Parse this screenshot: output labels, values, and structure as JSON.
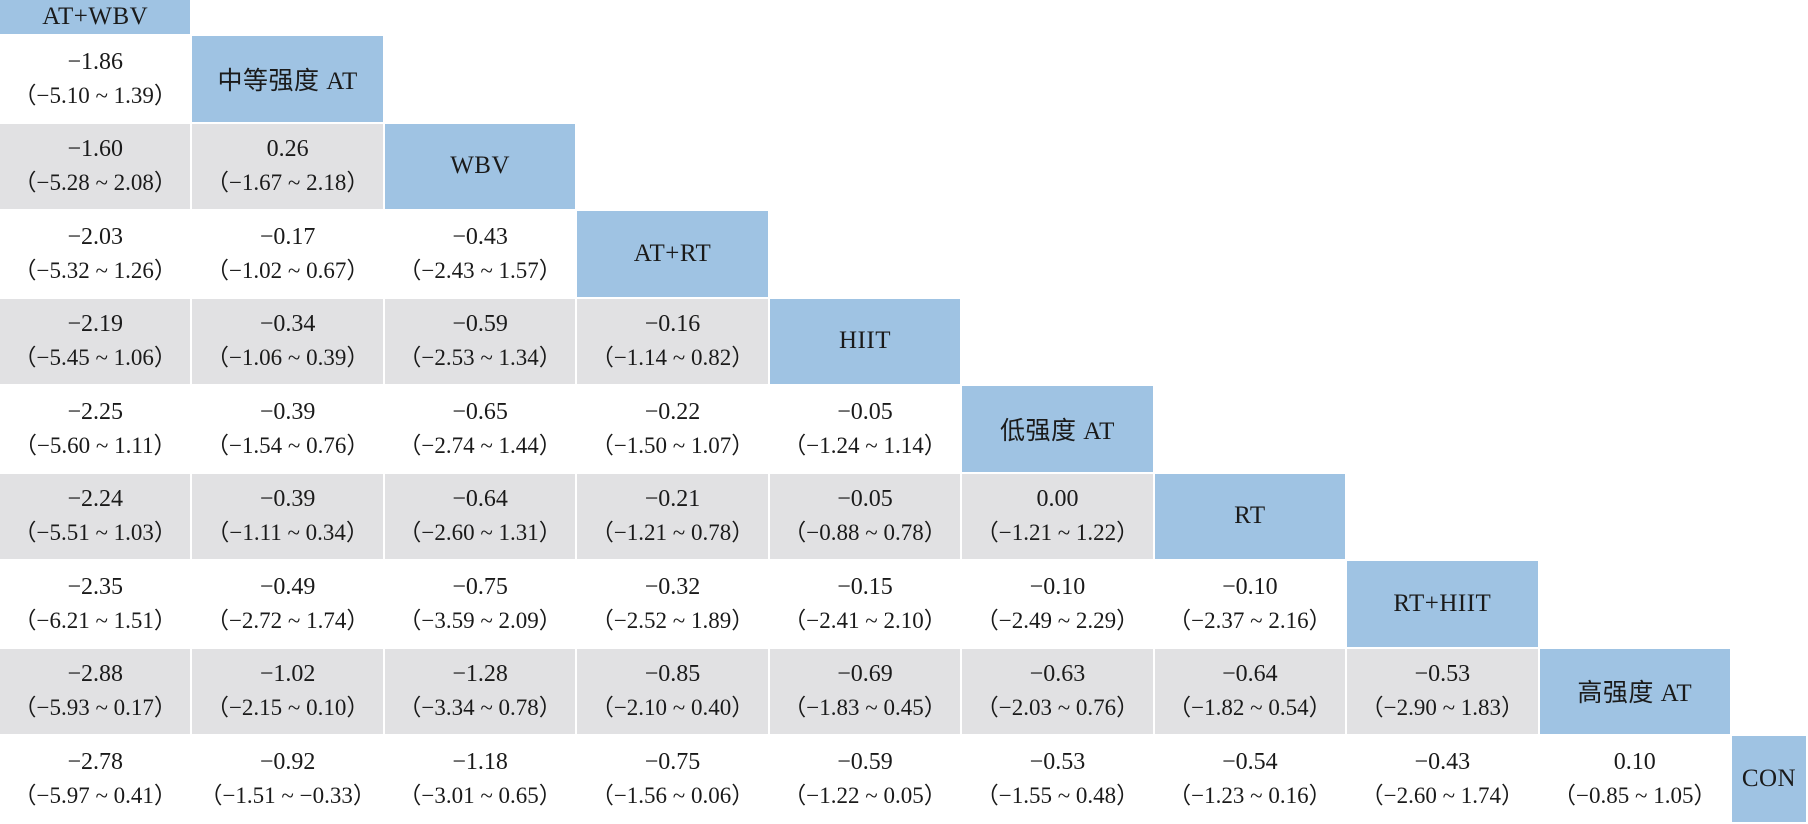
{
  "colors": {
    "diagonal_blue": "#9fc3e3",
    "stripe_gray": "#e1e1e3",
    "background": "#ffffff",
    "text": "#1a1a1a"
  },
  "table": {
    "treatments": [
      "AT+WBV",
      "中等强度 AT",
      "WBV",
      "AT+RT",
      "HIIT",
      "低强度 AT",
      "RT",
      "RT+HIIT",
      "高强度 AT",
      "CON"
    ],
    "rows": [
      {
        "cells": []
      },
      {
        "cells": [
          {
            "value": "−1.86",
            "ci": "（−5.10 ~ 1.39）"
          }
        ]
      },
      {
        "cells": [
          {
            "value": "−1.60",
            "ci": "（−5.28 ~ 2.08）"
          },
          {
            "value": "0.26",
            "ci": "（−1.67 ~ 2.18）"
          }
        ]
      },
      {
        "cells": [
          {
            "value": "−2.03",
            "ci": "（−5.32 ~ 1.26）"
          },
          {
            "value": "−0.17",
            "ci": "（−1.02 ~ 0.67）"
          },
          {
            "value": "−0.43",
            "ci": "（−2.43 ~ 1.57）"
          }
        ]
      },
      {
        "cells": [
          {
            "value": "−2.19",
            "ci": "（−5.45 ~ 1.06）"
          },
          {
            "value": "−0.34",
            "ci": "（−1.06 ~ 0.39）"
          },
          {
            "value": "−0.59",
            "ci": "（−2.53 ~ 1.34）"
          },
          {
            "value": "−0.16",
            "ci": "（−1.14 ~ 0.82）"
          }
        ]
      },
      {
        "cells": [
          {
            "value": "−2.25",
            "ci": "（−5.60 ~ 1.11）"
          },
          {
            "value": "−0.39",
            "ci": "（−1.54 ~ 0.76）"
          },
          {
            "value": "−0.65",
            "ci": "（−2.74 ~ 1.44）"
          },
          {
            "value": "−0.22",
            "ci": "（−1.50 ~ 1.07）"
          },
          {
            "value": "−0.05",
            "ci": "（−1.24 ~ 1.14）"
          }
        ]
      },
      {
        "cells": [
          {
            "value": "−2.24",
            "ci": "（−5.51 ~ 1.03）"
          },
          {
            "value": "−0.39",
            "ci": "（−1.11 ~ 0.34）"
          },
          {
            "value": "−0.64",
            "ci": "（−2.60 ~ 1.31）"
          },
          {
            "value": "−0.21",
            "ci": "（−1.21 ~ 0.78）"
          },
          {
            "value": "−0.05",
            "ci": "（−0.88 ~ 0.78）"
          },
          {
            "value": "0.00",
            "ci": "（−1.21 ~ 1.22）"
          }
        ]
      },
      {
        "cells": [
          {
            "value": "−2.35",
            "ci": "（−6.21 ~ 1.51）"
          },
          {
            "value": "−0.49",
            "ci": "（−2.72 ~ 1.74）"
          },
          {
            "value": "−0.75",
            "ci": "（−3.59 ~ 2.09）"
          },
          {
            "value": "−0.32",
            "ci": "（−2.52 ~ 1.89）"
          },
          {
            "value": "−0.15",
            "ci": "（−2.41 ~ 2.10）"
          },
          {
            "value": "−0.10",
            "ci": "（−2.49 ~ 2.29）"
          },
          {
            "value": "−0.10",
            "ci": "（−2.37 ~ 2.16）"
          }
        ]
      },
      {
        "cells": [
          {
            "value": "−2.88",
            "ci": "（−5.93 ~ 0.17）"
          },
          {
            "value": "−1.02",
            "ci": "（−2.15 ~ 0.10）"
          },
          {
            "value": "−1.28",
            "ci": "（−3.34 ~ 0.78）"
          },
          {
            "value": "−0.85",
            "ci": "（−2.10 ~ 0.40）"
          },
          {
            "value": "−0.69",
            "ci": "（−1.83 ~ 0.45）"
          },
          {
            "value": "−0.63",
            "ci": "（−2.03 ~ 0.76）"
          },
          {
            "value": "−0.64",
            "ci": "（−1.82 ~ 0.54）"
          },
          {
            "value": "−0.53",
            "ci": "（−2.90 ~ 1.83）"
          }
        ]
      },
      {
        "cells": [
          {
            "value": "−2.78",
            "ci": "（−5.97 ~ 0.41）"
          },
          {
            "value": "−0.92",
            "ci": "（−1.51 ~ −0.33）"
          },
          {
            "value": "−1.18",
            "ci": "（−3.01 ~ 0.65）"
          },
          {
            "value": "−0.75",
            "ci": "（−1.56 ~ 0.06）"
          },
          {
            "value": "−0.59",
            "ci": "（−1.22 ~ 0.05）"
          },
          {
            "value": "−0.53",
            "ci": "（−1.55 ~ 0.48）"
          },
          {
            "value": "−0.54",
            "ci": "（−1.23 ~ 0.16）"
          },
          {
            "value": "−0.43",
            "ci": "（−2.60 ~ 1.74）"
          },
          {
            "value": "0.10",
            "ci": "（−0.85 ~ 1.05）"
          }
        ]
      }
    ]
  },
  "chart_data": {
    "type": "table",
    "layout_hint": "lower-triangular league table; diagonal = treatment names (blue), row-vs-column cells = effect estimate with 95% CI; alternating white/gray row stripes",
    "treatments": [
      "AT+WBV",
      "中等强度 AT",
      "WBV",
      "AT+RT",
      "HIIT",
      "低强度 AT",
      "RT",
      "RT+HIIT",
      "高强度 AT",
      "CON"
    ],
    "rows": [
      {
        "treatment": "中等强度 AT",
        "comparisons": [
          {
            "vs": "AT+WBV",
            "est": -1.86,
            "ci": [
              -5.1,
              1.39
            ]
          }
        ]
      },
      {
        "treatment": "WBV",
        "comparisons": [
          {
            "vs": "AT+WBV",
            "est": -1.6,
            "ci": [
              -5.28,
              2.08
            ]
          },
          {
            "vs": "中等强度 AT",
            "est": 0.26,
            "ci": [
              -1.67,
              2.18
            ]
          }
        ]
      },
      {
        "treatment": "AT+RT",
        "comparisons": [
          {
            "vs": "AT+WBV",
            "est": -2.03,
            "ci": [
              -5.32,
              1.26
            ]
          },
          {
            "vs": "中等强度 AT",
            "est": -0.17,
            "ci": [
              -1.02,
              0.67
            ]
          },
          {
            "vs": "WBV",
            "est": -0.43,
            "ci": [
              -2.43,
              1.57
            ]
          }
        ]
      },
      {
        "treatment": "HIIT",
        "comparisons": [
          {
            "vs": "AT+WBV",
            "est": -2.19,
            "ci": [
              -5.45,
              1.06
            ]
          },
          {
            "vs": "中等强度 AT",
            "est": -0.34,
            "ci": [
              -1.06,
              0.39
            ]
          },
          {
            "vs": "WBV",
            "est": -0.59,
            "ci": [
              -2.53,
              1.34
            ]
          },
          {
            "vs": "AT+RT",
            "est": -0.16,
            "ci": [
              -1.14,
              0.82
            ]
          }
        ]
      },
      {
        "treatment": "低强度 AT",
        "comparisons": [
          {
            "vs": "AT+WBV",
            "est": -2.25,
            "ci": [
              -5.6,
              1.11
            ]
          },
          {
            "vs": "中等强度 AT",
            "est": -0.39,
            "ci": [
              -1.54,
              0.76
            ]
          },
          {
            "vs": "WBV",
            "est": -0.65,
            "ci": [
              -2.74,
              1.44
            ]
          },
          {
            "vs": "AT+RT",
            "est": -0.22,
            "ci": [
              -1.5,
              1.07
            ]
          },
          {
            "vs": "HIIT",
            "est": -0.05,
            "ci": [
              -1.24,
              1.14
            ]
          }
        ]
      },
      {
        "treatment": "RT",
        "comparisons": [
          {
            "vs": "AT+WBV",
            "est": -2.24,
            "ci": [
              -5.51,
              1.03
            ]
          },
          {
            "vs": "中等强度 AT",
            "est": -0.39,
            "ci": [
              -1.11,
              0.34
            ]
          },
          {
            "vs": "WBV",
            "est": -0.64,
            "ci": [
              -2.6,
              1.31
            ]
          },
          {
            "vs": "AT+RT",
            "est": -0.21,
            "ci": [
              -1.21,
              0.78
            ]
          },
          {
            "vs": "HIIT",
            "est": -0.05,
            "ci": [
              -0.88,
              0.78
            ]
          },
          {
            "vs": "低强度 AT",
            "est": 0.0,
            "ci": [
              -1.21,
              1.22
            ]
          }
        ]
      },
      {
        "treatment": "RT+HIIT",
        "comparisons": [
          {
            "vs": "AT+WBV",
            "est": -2.35,
            "ci": [
              -6.21,
              1.51
            ]
          },
          {
            "vs": "中等强度 AT",
            "est": -0.49,
            "ci": [
              -2.72,
              1.74
            ]
          },
          {
            "vs": "WBV",
            "est": -0.75,
            "ci": [
              -3.59,
              2.09
            ]
          },
          {
            "vs": "AT+RT",
            "est": -0.32,
            "ci": [
              -2.52,
              1.89
            ]
          },
          {
            "vs": "HIIT",
            "est": -0.15,
            "ci": [
              -2.41,
              2.1
            ]
          },
          {
            "vs": "低强度 AT",
            "est": -0.1,
            "ci": [
              -2.49,
              2.29
            ]
          },
          {
            "vs": "RT",
            "est": -0.1,
            "ci": [
              -2.37,
              2.16
            ]
          }
        ]
      },
      {
        "treatment": "高强度 AT",
        "comparisons": [
          {
            "vs": "AT+WBV",
            "est": -2.88,
            "ci": [
              -5.93,
              0.17
            ]
          },
          {
            "vs": "中等强度 AT",
            "est": -1.02,
            "ci": [
              -2.15,
              0.1
            ]
          },
          {
            "vs": "WBV",
            "est": -1.28,
            "ci": [
              -3.34,
              0.78
            ]
          },
          {
            "vs": "AT+RT",
            "est": -0.85,
            "ci": [
              -2.1,
              0.4
            ]
          },
          {
            "vs": "HIIT",
            "est": -0.69,
            "ci": [
              -1.83,
              0.45
            ]
          },
          {
            "vs": "低强度 AT",
            "est": -0.63,
            "ci": [
              -2.03,
              0.76
            ]
          },
          {
            "vs": "RT",
            "est": -0.64,
            "ci": [
              -1.82,
              0.54
            ]
          },
          {
            "vs": "RT+HIIT",
            "est": -0.53,
            "ci": [
              -2.9,
              1.83
            ]
          }
        ]
      },
      {
        "treatment": "CON",
        "comparisons": [
          {
            "vs": "AT+WBV",
            "est": -2.78,
            "ci": [
              -5.97,
              0.41
            ]
          },
          {
            "vs": "中等强度 AT",
            "est": -0.92,
            "ci": [
              -1.51,
              -0.33
            ]
          },
          {
            "vs": "WBV",
            "est": -1.18,
            "ci": [
              -3.01,
              0.65
            ]
          },
          {
            "vs": "AT+RT",
            "est": -0.75,
            "ci": [
              -1.56,
              0.06
            ]
          },
          {
            "vs": "HIIT",
            "est": -0.59,
            "ci": [
              -1.22,
              0.05
            ]
          },
          {
            "vs": "低强度 AT",
            "est": -0.53,
            "ci": [
              -1.55,
              0.48
            ]
          },
          {
            "vs": "RT",
            "est": -0.54,
            "ci": [
              -1.23,
              0.16
            ]
          },
          {
            "vs": "RT+HIIT",
            "est": -0.43,
            "ci": [
              -2.6,
              1.74
            ]
          },
          {
            "vs": "高强度 AT",
            "est": 0.1,
            "ci": [
              -0.85,
              1.05
            ]
          }
        ]
      }
    ]
  }
}
